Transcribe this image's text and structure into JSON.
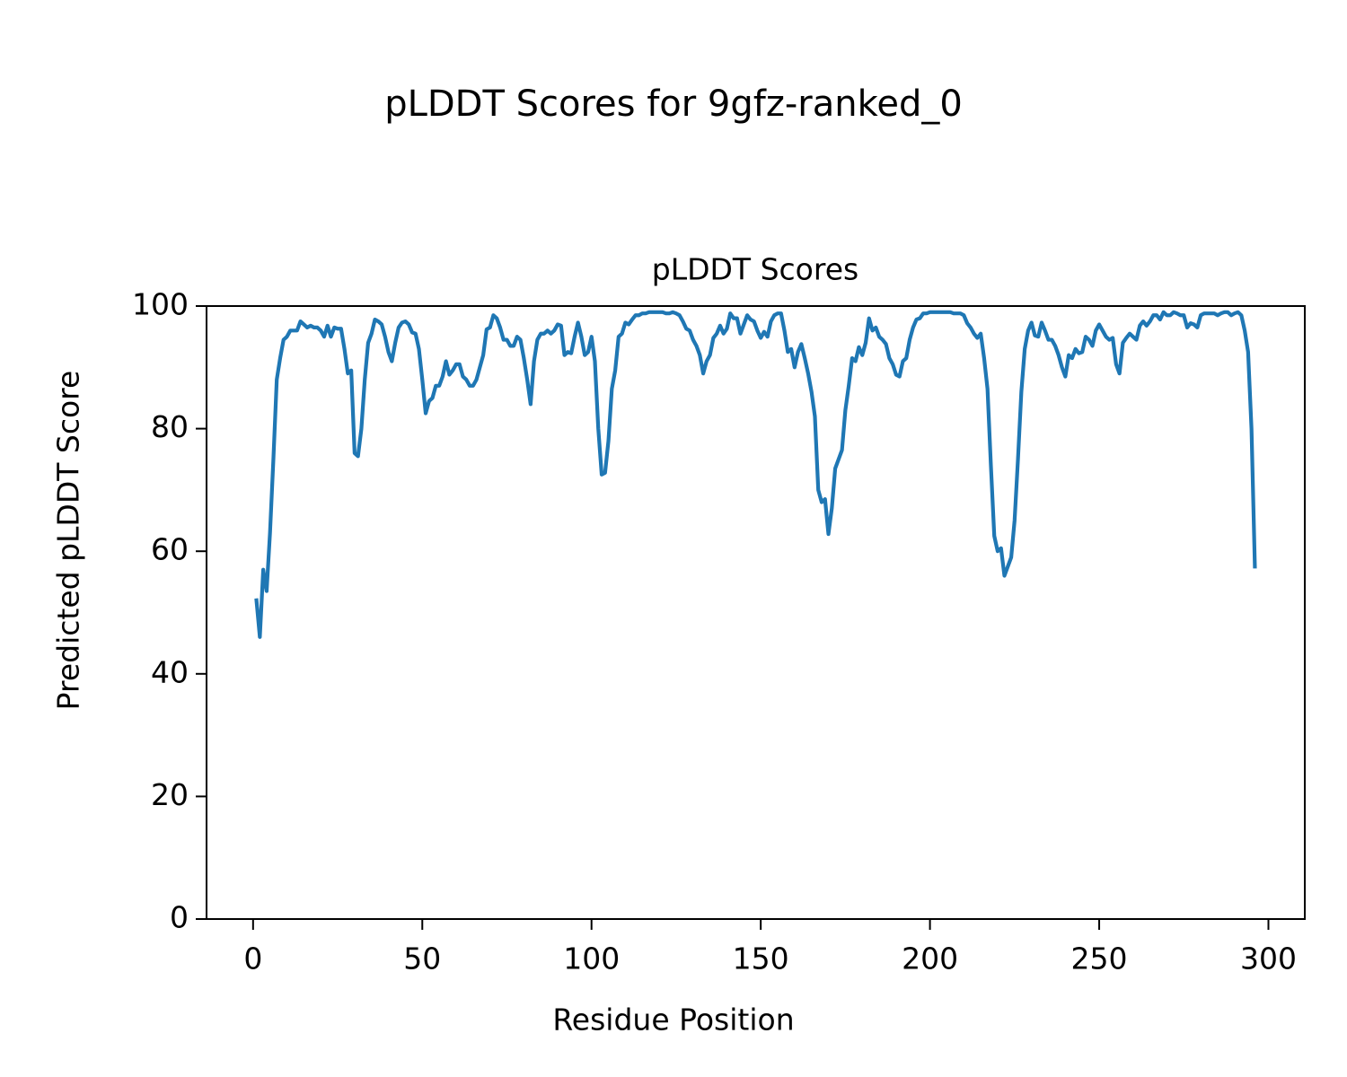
{
  "chart_data": {
    "type": "line",
    "suptitle": "pLDDT Scores for 9gfz-ranked_0",
    "title": "pLDDT Scores",
    "xlabel": "Residue Position",
    "ylabel": "Predicted pLDDT Score",
    "color": "#1f77b4",
    "xlim": [
      -13.75,
      310.75
    ],
    "ylim": [
      0,
      100
    ],
    "xticks": [
      0,
      50,
      100,
      150,
      200,
      250,
      300
    ],
    "yticks": [
      0,
      20,
      40,
      60,
      80,
      100
    ],
    "x": [
      1,
      2,
      3,
      4,
      5,
      6,
      7,
      8,
      9,
      10,
      11,
      12,
      13,
      14,
      15,
      16,
      17,
      18,
      19,
      20,
      21,
      22,
      23,
      24,
      25,
      26,
      27,
      28,
      29,
      30,
      31,
      32,
      33,
      34,
      35,
      36,
      37,
      38,
      39,
      40,
      41,
      42,
      43,
      44,
      45,
      46,
      47,
      48,
      49,
      50,
      51,
      52,
      53,
      54,
      55,
      56,
      57,
      58,
      59,
      60,
      61,
      62,
      63,
      64,
      65,
      66,
      67,
      68,
      69,
      70,
      71,
      72,
      73,
      74,
      75,
      76,
      77,
      78,
      79,
      80,
      81,
      82,
      83,
      84,
      85,
      86,
      87,
      88,
      89,
      90,
      91,
      92,
      93,
      94,
      95,
      96,
      97,
      98,
      99,
      100,
      101,
      102,
      103,
      104,
      105,
      106,
      107,
      108,
      109,
      110,
      111,
      112,
      113,
      114,
      115,
      116,
      117,
      118,
      119,
      120,
      121,
      122,
      123,
      124,
      125,
      126,
      127,
      128,
      129,
      130,
      131,
      132,
      133,
      134,
      135,
      136,
      137,
      138,
      139,
      140,
      141,
      142,
      143,
      144,
      145,
      146,
      147,
      148,
      149,
      150,
      151,
      152,
      153,
      154,
      155,
      156,
      157,
      158,
      159,
      160,
      161,
      162,
      163,
      164,
      165,
      166,
      167,
      168,
      169,
      170,
      171,
      172,
      173,
      174,
      175,
      176,
      177,
      178,
      179,
      180,
      181,
      182,
      183,
      184,
      185,
      186,
      187,
      188,
      189,
      190,
      191,
      192,
      193,
      194,
      195,
      196,
      197,
      198,
      199,
      200,
      201,
      202,
      203,
      204,
      205,
      206,
      207,
      208,
      209,
      210,
      211,
      212,
      213,
      214,
      215,
      216,
      217,
      218,
      219,
      220,
      221,
      222,
      223,
      224,
      225,
      226,
      227,
      228,
      229,
      230,
      231,
      232,
      233,
      234,
      235,
      236,
      237,
      238,
      239,
      240,
      241,
      242,
      243,
      244,
      245,
      246,
      247,
      248,
      249,
      250,
      251,
      252,
      253,
      254,
      255,
      256,
      257,
      258,
      259,
      260,
      261,
      262,
      263,
      264,
      265,
      266,
      267,
      268,
      269,
      270,
      271,
      272,
      273,
      274,
      275,
      276,
      277,
      278,
      279,
      280,
      281,
      282,
      283,
      284,
      285,
      286,
      287,
      288,
      289,
      290,
      291,
      292,
      293,
      294,
      295,
      296
    ],
    "values": [
      52,
      46,
      57,
      53.5,
      63,
      75,
      88,
      91.5,
      94.5,
      95,
      96,
      96,
      96,
      97.5,
      97,
      96.5,
      96.8,
      96.5,
      96.5,
      96,
      95,
      96.8,
      95,
      96.5,
      96.3,
      96.3,
      93,
      89,
      89.5,
      76,
      75.5,
      80,
      88,
      94,
      95.5,
      97.8,
      97.5,
      97,
      95,
      92.5,
      91,
      94,
      96.5,
      97.3,
      97.5,
      97,
      95.7,
      95.5,
      93,
      88,
      82.5,
      84.5,
      85,
      87,
      87,
      88.5,
      91,
      88.8,
      89.5,
      90.5,
      90.5,
      88.5,
      88,
      87,
      87,
      88,
      90,
      92,
      96.2,
      96.5,
      98.5,
      98,
      96.5,
      94.5,
      94.5,
      93.5,
      93.5,
      95,
      94.5,
      91.5,
      88,
      84,
      91,
      94.5,
      95.5,
      95.5,
      96,
      95.5,
      96,
      97,
      96.8,
      92,
      92.5,
      92.3,
      95,
      97.3,
      95,
      92,
      92.5,
      95,
      91,
      80,
      72.5,
      72.8,
      78,
      86.5,
      89.5,
      95,
      95.5,
      97.3,
      97,
      97.8,
      98.5,
      98.5,
      98.8,
      98.8,
      99,
      99,
      99,
      99,
      99,
      98.8,
      98.8,
      99,
      98.8,
      98.5,
      97.5,
      96.3,
      96,
      94.5,
      93.5,
      92,
      89,
      91,
      92,
      94.8,
      95.5,
      96.8,
      95.5,
      96.3,
      98.8,
      98,
      98,
      95.5,
      97,
      98.5,
      97.8,
      97.5,
      96,
      94.8,
      95.8,
      95,
      97.5,
      98.5,
      98.8,
      98.8,
      96,
      92.5,
      93,
      90,
      92.5,
      93.8,
      91.5,
      89,
      86,
      82,
      70,
      68,
      68.5,
      62.8,
      67,
      73.5,
      75,
      76.5,
      83,
      87,
      91.5,
      91,
      93.3,
      92,
      94,
      98,
      96,
      96.5,
      95,
      94.5,
      93.8,
      91.5,
      90.5,
      88.8,
      88.5,
      91,
      91.5,
      94.5,
      96.5,
      97.8,
      98,
      98.8,
      98.8,
      99,
      99,
      99,
      99,
      99,
      99,
      99,
      98.8,
      98.8,
      98.8,
      98.5,
      97.2,
      96.5,
      95.5,
      94.8,
      95.5,
      91.5,
      86.5,
      74,
      62.5,
      60,
      60.5,
      56,
      57.5,
      59,
      65,
      75,
      86,
      93,
      96,
      97.3,
      95.2,
      95,
      97.3,
      96,
      94.5,
      94.5,
      93.5,
      92,
      90,
      88.5,
      92,
      91.5,
      93,
      92.3,
      92.5,
      95,
      94.5,
      93.5,
      96,
      97,
      96,
      95,
      94.5,
      94.8,
      90.5,
      89,
      94,
      94.8,
      95.5,
      95,
      94.5,
      96.8,
      97.5,
      96.8,
      97.5,
      98.5,
      98.5,
      97.8,
      99,
      98.5,
      98.5,
      99,
      98.8,
      98.5,
      98.5,
      96.5,
      97.2,
      97,
      96.5,
      98.5,
      98.8,
      98.8,
      98.8,
      98.8,
      98.5,
      98.8,
      99,
      99,
      98.5,
      98.8,
      99,
      98.5,
      96,
      92.5,
      80,
      57.5
    ]
  }
}
